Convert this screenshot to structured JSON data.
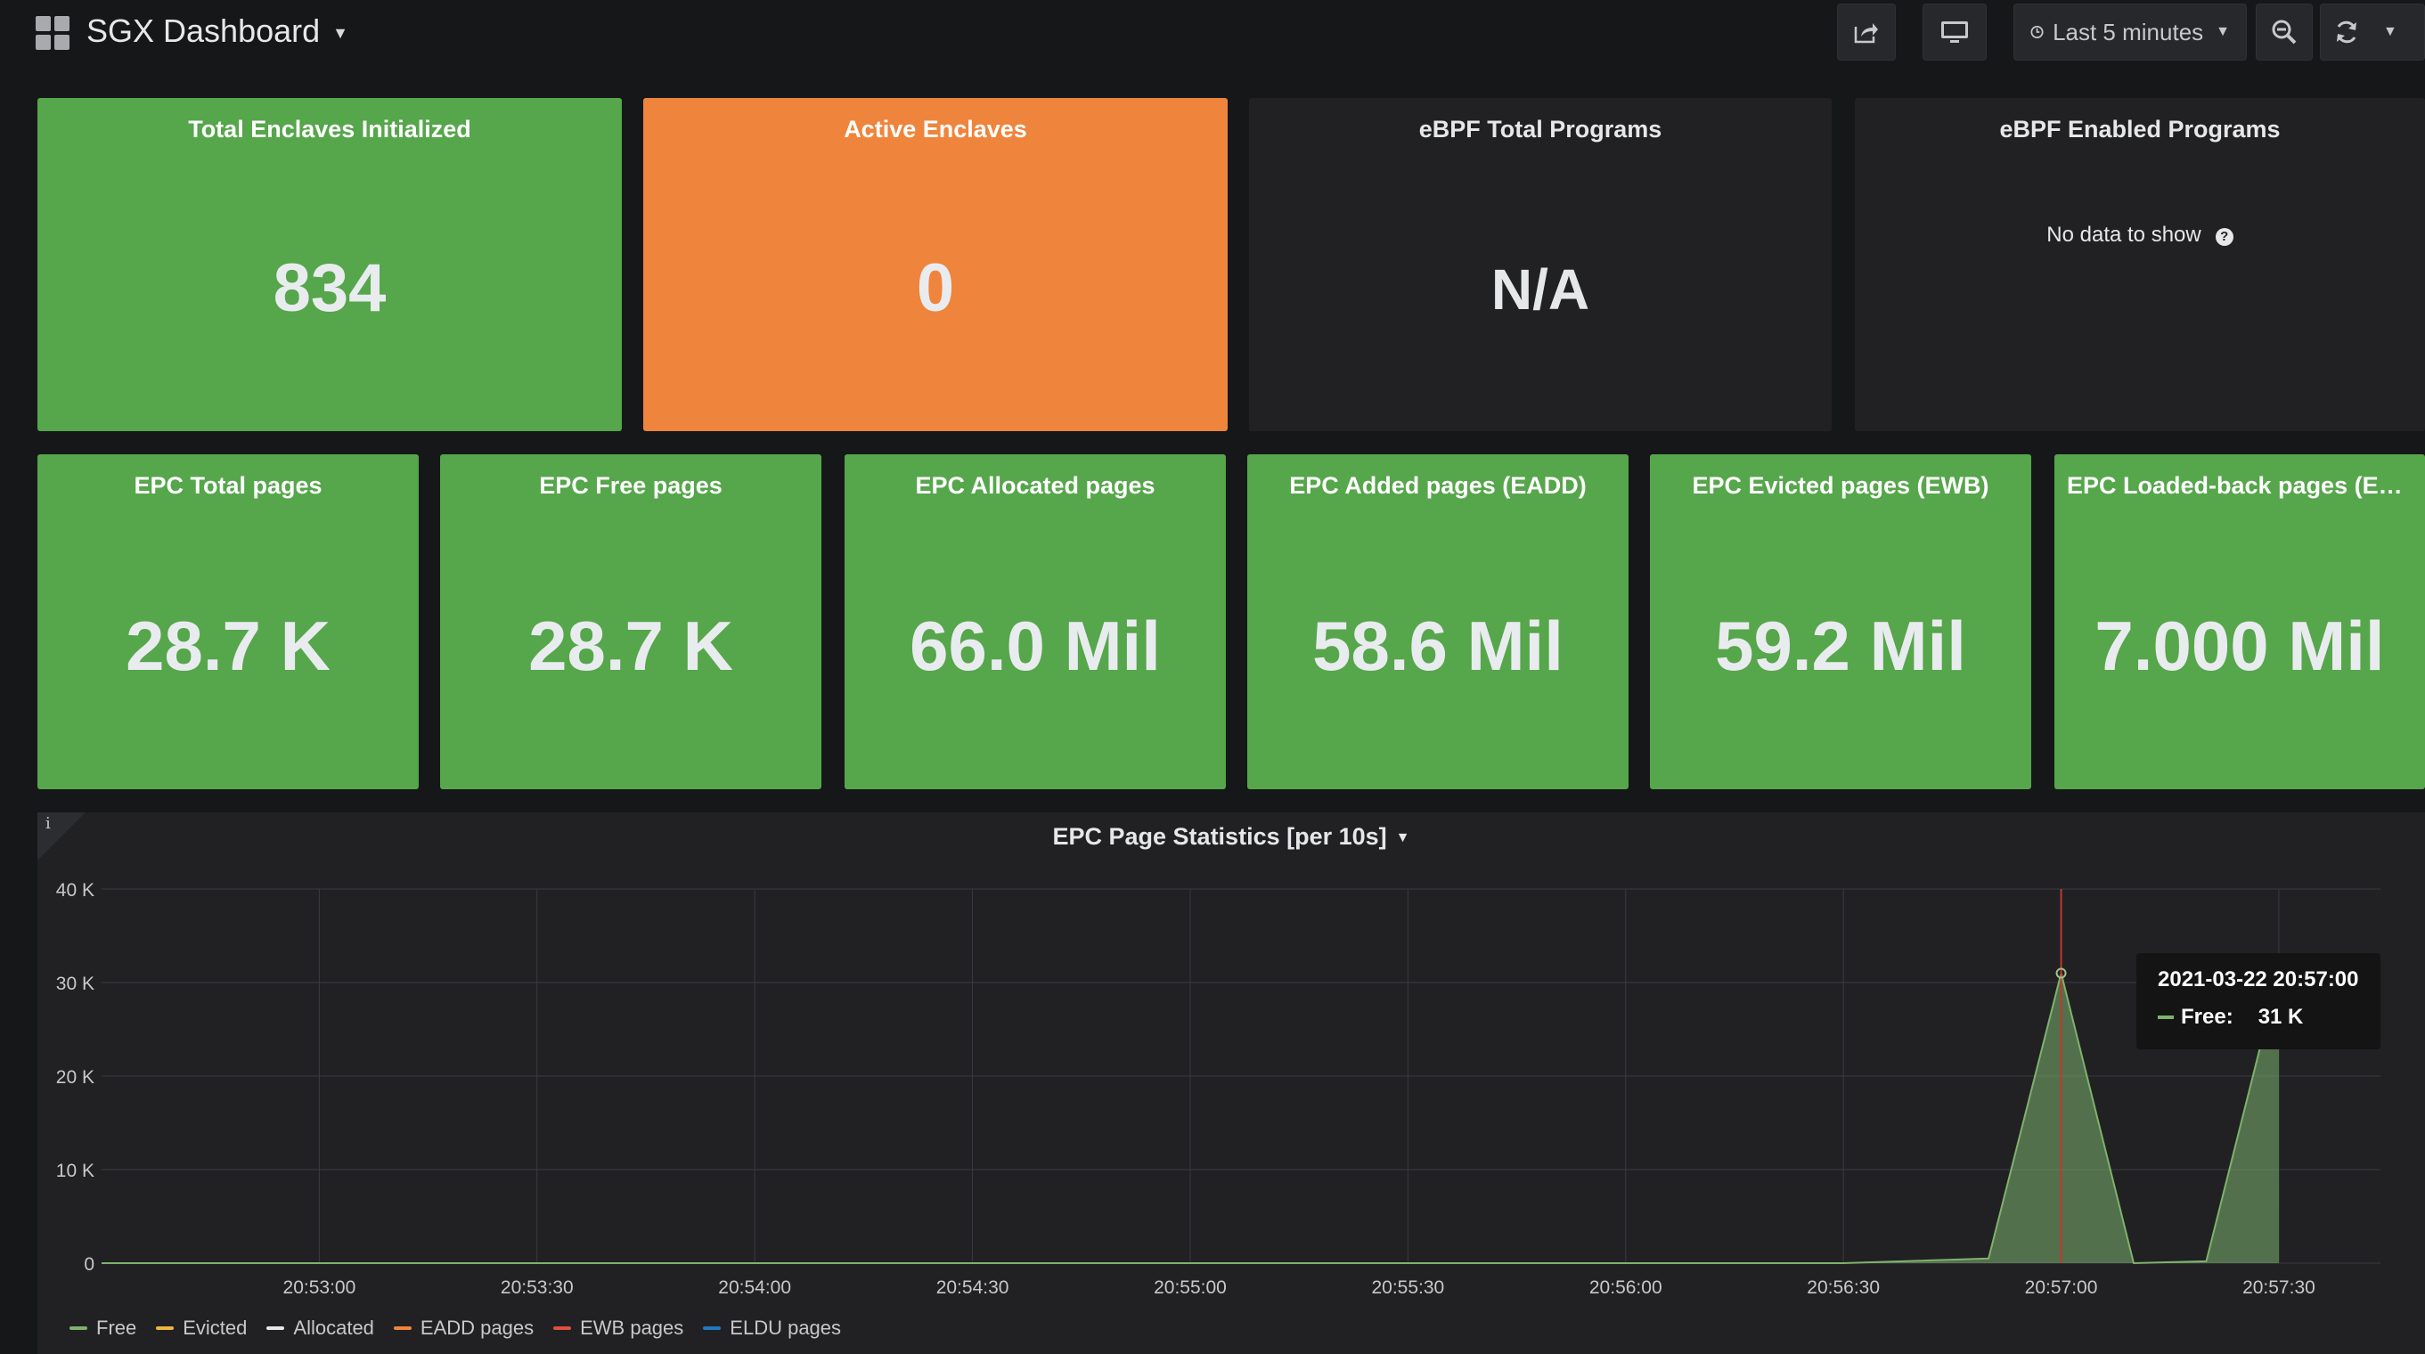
{
  "header": {
    "title": "SGX Dashboard",
    "time_range": "Last 5 minutes",
    "icons": [
      "apps-grid-icon",
      "share-icon",
      "tv-mode-icon",
      "clock-icon",
      "zoom-out-icon",
      "refresh-icon",
      "chevron-down-icon"
    ]
  },
  "row1": [
    {
      "title": "Total Enclaves Initialized",
      "value": "834",
      "color": "#56a64b"
    },
    {
      "title": "Active Enclaves",
      "value": "0",
      "color": "#ef843c"
    },
    {
      "title": "eBPF Total Programs",
      "value": "N/A",
      "color": "#212124"
    },
    {
      "title": "eBPF Enabled Programs",
      "value": "",
      "no_data": "No data to show",
      "color": "#212124"
    }
  ],
  "row2": [
    {
      "title": "EPC Total pages",
      "value": "28.7 K"
    },
    {
      "title": "EPC Free pages",
      "value": "28.7 K"
    },
    {
      "title": "EPC Allocated pages",
      "value": "66.0 Mil"
    },
    {
      "title": "EPC Added pages (EADD)",
      "value": "58.6 Mil"
    },
    {
      "title": "EPC Evicted pages (EWB)",
      "value": "59.2 Mil"
    },
    {
      "title": "EPC Loaded-back pages (EL...",
      "value": "7.000 Mil"
    }
  ],
  "graph": {
    "title": "EPC Page Statistics [per 10s]",
    "tooltip": {
      "time": "2021-03-22 20:57:00",
      "series": "Free:",
      "value": "31 K"
    },
    "legend": [
      {
        "name": "Free",
        "color": "#7eb26d"
      },
      {
        "name": "Evicted",
        "color": "#eab839"
      },
      {
        "name": "Allocated",
        "color": "#e6e7e8"
      },
      {
        "name": "EADD pages",
        "color": "#ef843c"
      },
      {
        "name": "EWB pages",
        "color": "#e24d42"
      },
      {
        "name": "ELDU pages",
        "color": "#1f78c1"
      }
    ]
  },
  "chart_data": {
    "type": "area",
    "title": "EPC Page Statistics [per 10s]",
    "xlabel": "",
    "ylabel": "",
    "x_ticks": [
      "20:53:00",
      "20:53:30",
      "20:54:00",
      "20:54:30",
      "20:55:00",
      "20:55:30",
      "20:56:00",
      "20:56:30",
      "20:57:00",
      "20:57:30"
    ],
    "y_ticks": [
      "0",
      "10 K",
      "20 K",
      "30 K",
      "40 K"
    ],
    "ylim": [
      0,
      40000
    ],
    "grid": true,
    "legend_position": "bottom-left",
    "series": [
      {
        "name": "Free",
        "color": "#7eb26d",
        "x": [
          "20:52:30",
          "20:56:30",
          "20:56:50",
          "20:57:00",
          "20:57:10",
          "20:57:20",
          "20:57:30"
        ],
        "y": [
          0,
          0,
          500,
          31000,
          0,
          200,
          31000
        ]
      },
      {
        "name": "Evicted",
        "color": "#eab839",
        "x": [],
        "y": []
      },
      {
        "name": "Allocated",
        "color": "#e6e7e8",
        "x": [],
        "y": []
      },
      {
        "name": "EADD pages",
        "color": "#ef843c",
        "x": [],
        "y": []
      },
      {
        "name": "EWB pages",
        "color": "#e24d42",
        "x": [],
        "y": []
      },
      {
        "name": "ELDU pages",
        "color": "#1f78c1",
        "x": [],
        "y": []
      }
    ],
    "crosshair_time": "20:57:00"
  }
}
